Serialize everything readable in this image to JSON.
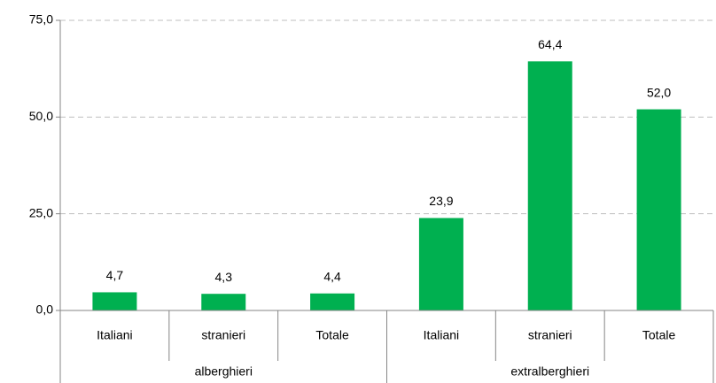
{
  "chart_data": {
    "type": "bar",
    "color": "#00b050",
    "grid": true,
    "ylim": [
      0,
      75
    ],
    "yticks": [
      {
        "value": 0,
        "label": "0,0"
      },
      {
        "value": 25,
        "label": "25,0"
      },
      {
        "value": 50,
        "label": "50,0"
      },
      {
        "value": 75,
        "label": "75,0"
      }
    ],
    "groups": [
      {
        "name": "alberghieri",
        "categories": [
          "Italiani",
          "stranieri",
          "Totale"
        ],
        "values": [
          4.7,
          4.3,
          4.4
        ],
        "value_labels": [
          "4,7",
          "4,3",
          "4,4"
        ]
      },
      {
        "name": "extralberghieri",
        "categories": [
          "Italiani",
          "stranieri",
          "Totale"
        ],
        "values": [
          23.9,
          64.4,
          52.0
        ],
        "value_labels": [
          "23,9",
          "64,4",
          "52,0"
        ]
      }
    ]
  }
}
